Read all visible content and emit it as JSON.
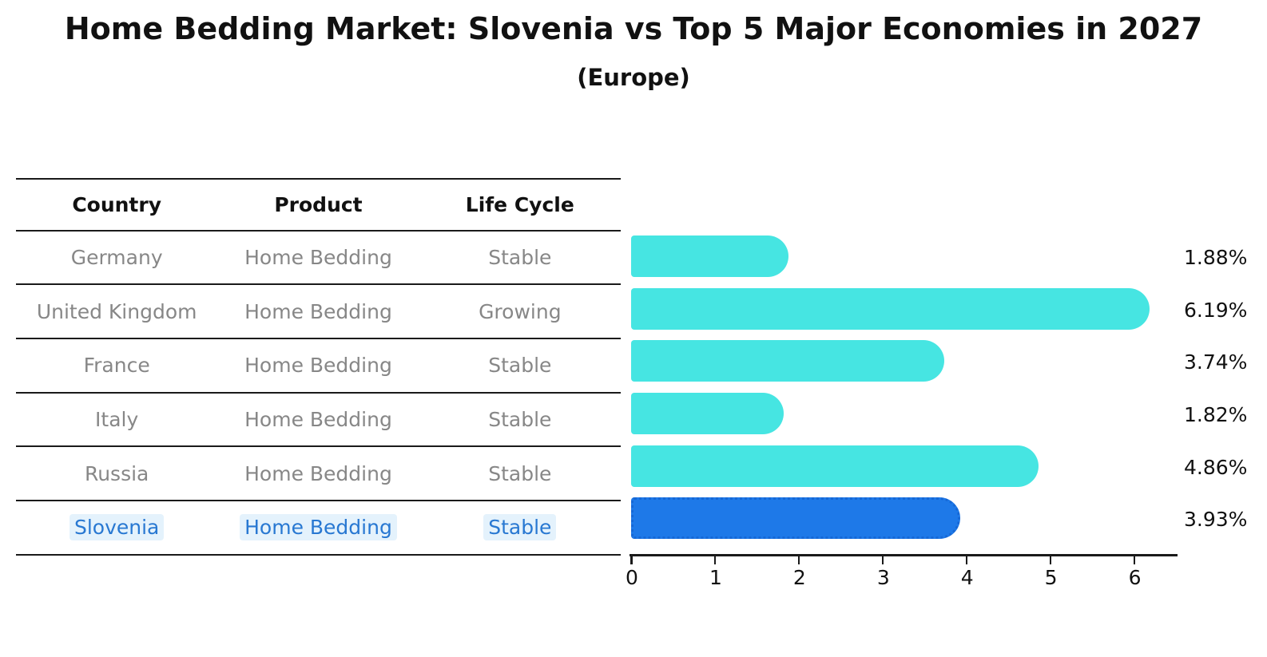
{
  "title": "Home Bedding Market: Slovenia vs Top 5 Major Economies in 2027",
  "subtitle": "(Europe)",
  "table": {
    "headers": [
      "Country",
      "Product",
      "Life Cycle"
    ],
    "rows": [
      {
        "country": "Germany",
        "product": "Home Bedding",
        "life_cycle": "Stable",
        "highlight": false
      },
      {
        "country": "United Kingdom",
        "product": "Home Bedding",
        "life_cycle": "Growing",
        "highlight": false
      },
      {
        "country": "France",
        "product": "Home Bedding",
        "life_cycle": "Stable",
        "highlight": false
      },
      {
        "country": "Italy",
        "product": "Home Bedding",
        "life_cycle": "Stable",
        "highlight": false
      },
      {
        "country": "Russia",
        "product": "Home Bedding",
        "life_cycle": "Stable",
        "highlight": false
      },
      {
        "country": "Slovenia",
        "product": "Home Bedding",
        "life_cycle": "Stable",
        "highlight": true
      }
    ]
  },
  "chart_data": {
    "type": "bar",
    "orientation": "horizontal",
    "title": "Home Bedding Market: Slovenia vs Top 5 Major Economies in 2027 (Europe)",
    "categories": [
      "Germany",
      "United Kingdom",
      "France",
      "Italy",
      "Russia",
      "Slovenia"
    ],
    "values": [
      1.88,
      6.19,
      3.74,
      1.82,
      4.86,
      3.93
    ],
    "labels": [
      "1.88%",
      "6.19%",
      "3.74%",
      "1.82%",
      "4.86%",
      "3.93%"
    ],
    "xticks": [
      0,
      1,
      2,
      3,
      4,
      5,
      6
    ],
    "xlim": [
      0,
      6.5
    ],
    "xlabel": "",
    "ylabel": "",
    "grid": false,
    "legend": "none",
    "bar_color": "#46E5E2",
    "highlight_color": "#1E79E8",
    "highlight_edge_color": "#1668D6",
    "highlight_index": 5,
    "highlight_text_color": "#2878D2",
    "text_color_muted": "#878787"
  }
}
